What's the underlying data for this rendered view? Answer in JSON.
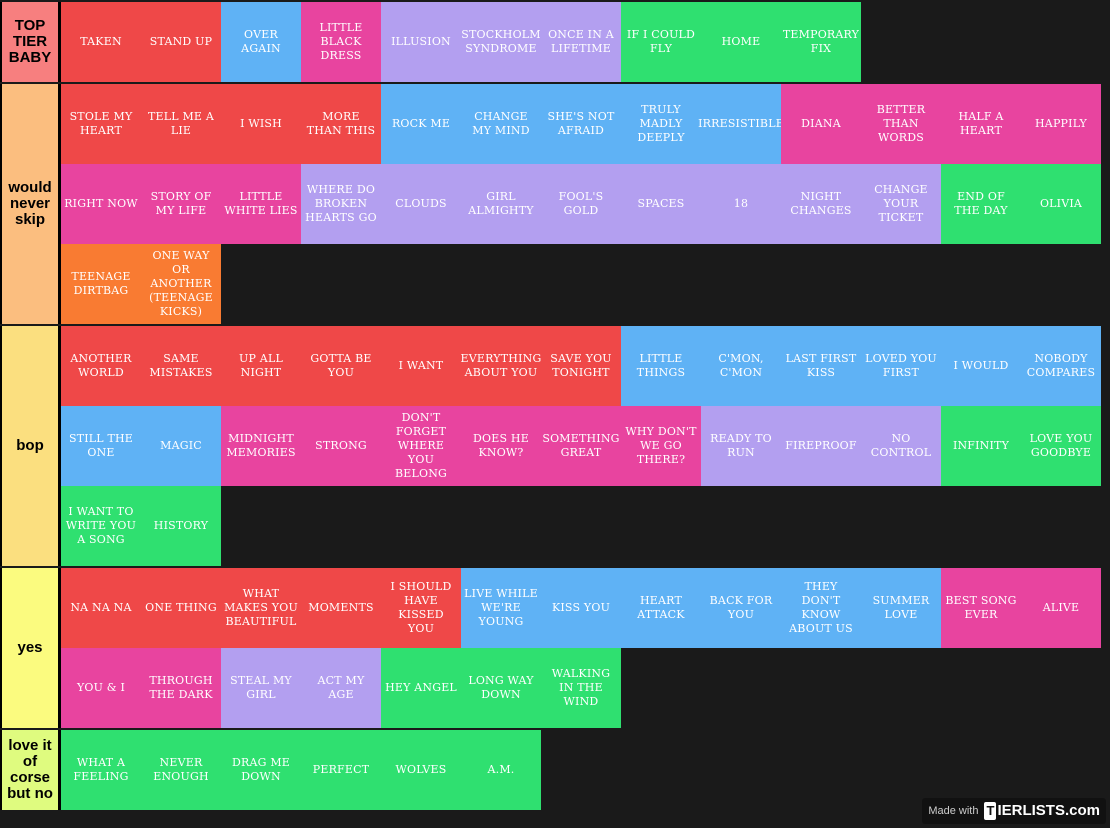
{
  "colors": {
    "red": "#ef4848",
    "blue": "#5fb2f5",
    "pink": "#e8449f",
    "lavender": "#b39ff0",
    "green": "#2fe070",
    "orange": "#f97b32"
  },
  "watermark": {
    "made_with": "Made with",
    "logo_box": "T",
    "logo_text": "IERLISTS.com"
  },
  "tiers": [
    {
      "label": "TOP TIER BABY",
      "color": "#f77f7f",
      "rows": 1,
      "items": [
        {
          "text": "TAKEN",
          "color": "red"
        },
        {
          "text": "STAND UP",
          "color": "red"
        },
        {
          "text": "OVER AGAIN",
          "color": "blue"
        },
        {
          "text": "LITTLE BLACK DRESS",
          "color": "pink"
        },
        {
          "text": "ILLUSION",
          "color": "lavender"
        },
        {
          "text": "STOCKHOLM SYNDROME",
          "color": "lavender"
        },
        {
          "text": "ONCE IN A LIFETIME",
          "color": "lavender"
        },
        {
          "text": "IF I COULD FLY",
          "color": "green"
        },
        {
          "text": "HOME",
          "color": "green"
        },
        {
          "text": "TEMPORARY FIX",
          "color": "green"
        }
      ]
    },
    {
      "label": "would never skip",
      "color": "#fbbe7f",
      "rows": 3,
      "items": [
        {
          "text": "STOLE MY HEART",
          "color": "red"
        },
        {
          "text": "TELL ME A LIE",
          "color": "red"
        },
        {
          "text": "I WISH",
          "color": "red"
        },
        {
          "text": "MORE THAN THIS",
          "color": "red"
        },
        {
          "text": "ROCK ME",
          "color": "blue"
        },
        {
          "text": "CHANGE MY MIND",
          "color": "blue"
        },
        {
          "text": "SHE'S NOT AFRAID",
          "color": "blue"
        },
        {
          "text": "TRULY MADLY DEEPLY",
          "color": "blue"
        },
        {
          "text": "IRRESISTIBLE",
          "color": "blue"
        },
        {
          "text": "DIANA",
          "color": "pink"
        },
        {
          "text": "BETTER THAN WORDS",
          "color": "pink"
        },
        {
          "text": "HALF A HEART",
          "color": "pink"
        },
        {
          "text": "HAPPILY",
          "color": "pink"
        },
        {
          "text": "RIGHT NOW",
          "color": "pink"
        },
        {
          "text": "STORY OF MY LIFE",
          "color": "pink"
        },
        {
          "text": "LITTLE WHITE LIES",
          "color": "pink"
        },
        {
          "text": "WHERE DO BROKEN HEARTS GO",
          "color": "lavender"
        },
        {
          "text": "CLOUDS",
          "color": "lavender"
        },
        {
          "text": "GIRL ALMIGHTY",
          "color": "lavender"
        },
        {
          "text": "FOOL'S GOLD",
          "color": "lavender"
        },
        {
          "text": "SPACES",
          "color": "lavender"
        },
        {
          "text": "18",
          "color": "lavender"
        },
        {
          "text": "NIGHT CHANGES",
          "color": "lavender"
        },
        {
          "text": "CHANGE YOUR TICKET",
          "color": "lavender"
        },
        {
          "text": "END OF THE DAY",
          "color": "green"
        },
        {
          "text": "OLIVIA",
          "color": "green"
        },
        {
          "text": "TEENAGE DIRTBAG",
          "color": "orange"
        },
        {
          "text": "ONE WAY OR ANOTHER (TEENAGE KICKS)",
          "color": "orange"
        }
      ]
    },
    {
      "label": "bop",
      "color": "#fbdf7f",
      "rows": 3,
      "items": [
        {
          "text": "ANOTHER WORLD",
          "color": "red"
        },
        {
          "text": "SAME MISTAKES",
          "color": "red"
        },
        {
          "text": "UP ALL NIGHT",
          "color": "red"
        },
        {
          "text": "GOTTA BE YOU",
          "color": "red"
        },
        {
          "text": "I WANT",
          "color": "red"
        },
        {
          "text": "EVERYTHING ABOUT YOU",
          "color": "red"
        },
        {
          "text": "SAVE YOU TONIGHT",
          "color": "red"
        },
        {
          "text": "LITTLE THINGS",
          "color": "blue"
        },
        {
          "text": "C'MON, C'MON",
          "color": "blue"
        },
        {
          "text": "LAST FIRST KISS",
          "color": "blue"
        },
        {
          "text": "LOVED YOU FIRST",
          "color": "blue"
        },
        {
          "text": "I WOULD",
          "color": "blue"
        },
        {
          "text": "NOBODY COMPARES",
          "color": "blue"
        },
        {
          "text": "STILL THE ONE",
          "color": "blue"
        },
        {
          "text": "MAGIC",
          "color": "blue"
        },
        {
          "text": "MIDNIGHT MEMORIES",
          "color": "pink"
        },
        {
          "text": "STRONG",
          "color": "pink"
        },
        {
          "text": "DON'T FORGET WHERE YOU BELONG",
          "color": "pink"
        },
        {
          "text": "DOES HE KNOW?",
          "color": "pink"
        },
        {
          "text": "SOMETHING GREAT",
          "color": "pink"
        },
        {
          "text": "WHY DON'T WE GO THERE?",
          "color": "pink"
        },
        {
          "text": "READY TO RUN",
          "color": "lavender"
        },
        {
          "text": "FIREPROOF",
          "color": "lavender"
        },
        {
          "text": "NO CONTROL",
          "color": "lavender"
        },
        {
          "text": "INFINITY",
          "color": "green"
        },
        {
          "text": "LOVE YOU GOODBYE",
          "color": "green"
        },
        {
          "text": "I WANT TO WRITE YOU A SONG",
          "color": "green"
        },
        {
          "text": "HISTORY",
          "color": "green"
        }
      ]
    },
    {
      "label": "yes",
      "color": "#fbfb7f",
      "rows": 2,
      "items": [
        {
          "text": "NA NA NA",
          "color": "red"
        },
        {
          "text": "ONE THING",
          "color": "red"
        },
        {
          "text": "WHAT MAKES YOU BEAUTIFUL",
          "color": "red"
        },
        {
          "text": "MOMENTS",
          "color": "red"
        },
        {
          "text": "I SHOULD HAVE KISSED YOU",
          "color": "red"
        },
        {
          "text": "LIVE WHILE WE'RE YOUNG",
          "color": "blue"
        },
        {
          "text": "KISS YOU",
          "color": "blue"
        },
        {
          "text": "HEART ATTACK",
          "color": "blue"
        },
        {
          "text": "BACK FOR YOU",
          "color": "blue"
        },
        {
          "text": "THEY DON'T KNOW ABOUT US",
          "color": "blue"
        },
        {
          "text": "SUMMER LOVE",
          "color": "blue"
        },
        {
          "text": "BEST SONG EVER",
          "color": "pink"
        },
        {
          "text": "ALIVE",
          "color": "pink"
        },
        {
          "text": "YOU & I",
          "color": "pink"
        },
        {
          "text": "THROUGH THE DARK",
          "color": "pink"
        },
        {
          "text": "STEAL MY GIRL",
          "color": "lavender"
        },
        {
          "text": "ACT MY AGE",
          "color": "lavender"
        },
        {
          "text": "HEY ANGEL",
          "color": "green"
        },
        {
          "text": "LONG WAY DOWN",
          "color": "green"
        },
        {
          "text": "WALKING IN THE WIND",
          "color": "green"
        }
      ]
    },
    {
      "label": "love it of corse but no",
      "color": "#dffb7f",
      "rows": 1,
      "items": [
        {
          "text": "WHAT A FEELING",
          "color": "green"
        },
        {
          "text": "NEVER ENOUGH",
          "color": "green"
        },
        {
          "text": "DRAG ME DOWN",
          "color": "green"
        },
        {
          "text": "PERFECT",
          "color": "green"
        },
        {
          "text": "WOLVES",
          "color": "green"
        },
        {
          "text": "A.M.",
          "color": "green"
        }
      ]
    }
  ]
}
